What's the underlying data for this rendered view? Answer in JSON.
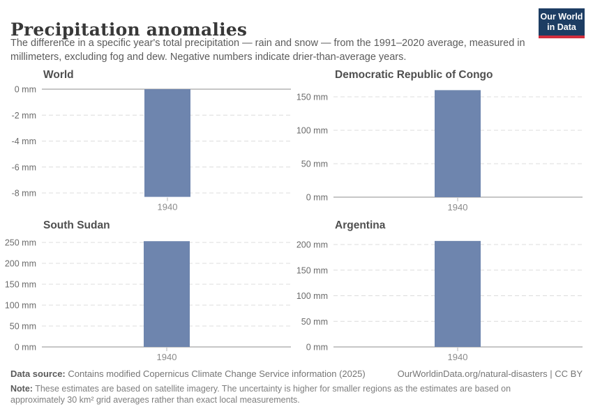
{
  "header": {
    "title": "Precipitation anomalies",
    "subtitle": "The difference in a specific year's total precipitation — rain and snow — from the 1991–2020 average, measured in millimeters, excluding fog and dew. Negative numbers indicate drier-than-average years.",
    "logo": {
      "line1": "Our World",
      "line2": "in Data",
      "bg_color": "#1d3d63",
      "stripe_color": "#d22e3d"
    }
  },
  "chart_data": [
    {
      "type": "bar",
      "title": "World",
      "categories": [
        "1940"
      ],
      "values": [
        -8.3
      ],
      "unit": "mm",
      "yticks": [
        0,
        -2,
        -4,
        -6,
        -8
      ],
      "ylim": [
        -8.3,
        0
      ],
      "grid": "dashed horizontal, solid zero line",
      "legend": "none"
    },
    {
      "type": "bar",
      "title": "Democratic Republic of Congo",
      "categories": [
        "1940"
      ],
      "values": [
        160
      ],
      "unit": "mm",
      "yticks": [
        0,
        50,
        100,
        150
      ],
      "ylim": [
        0,
        160
      ],
      "grid": "dashed horizontal, solid zero line",
      "legend": "none"
    },
    {
      "type": "bar",
      "title": "South Sudan",
      "categories": [
        "1940"
      ],
      "values": [
        253
      ],
      "unit": "mm",
      "yticks": [
        0,
        50,
        100,
        150,
        200,
        250
      ],
      "ylim": [
        0,
        253
      ],
      "grid": "dashed horizontal, solid zero line",
      "legend": "none"
    },
    {
      "type": "bar",
      "title": "Argentina",
      "categories": [
        "1940"
      ],
      "values": [
        207
      ],
      "unit": "mm",
      "yticks": [
        0,
        50,
        100,
        150,
        200
      ],
      "ylim": [
        0,
        207
      ],
      "grid": "dashed horizontal, solid zero line",
      "legend": "none"
    }
  ],
  "style": {
    "bar_color": "#6e85ae",
    "zero_line_color": "#8e8e8e",
    "gridline_color": "#dcdcdc",
    "tick_mark_color": "#b3b3b3"
  },
  "footer": {
    "data_source_label": "Data source:",
    "data_source_text": " Contains modified Copernicus Climate Change Service information (2025)",
    "link_text": "OurWorldinData.org/natural-disasters | CC BY",
    "note_label": "Note:",
    "note_text": " These estimates are based on satellite imagery. The uncertainty is higher for smaller regions as the estimates are based on approximately 30 km² grid averages rather than exact local measurements."
  }
}
